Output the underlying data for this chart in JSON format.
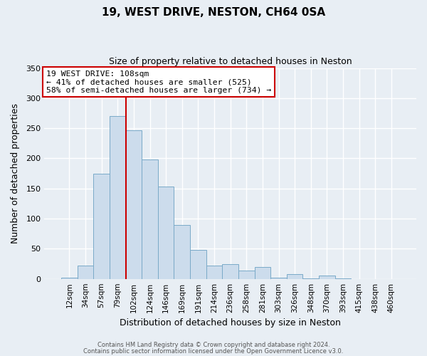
{
  "title": "19, WEST DRIVE, NESTON, CH64 0SA",
  "subtitle": "Size of property relative to detached houses in Neston",
  "xlabel": "Distribution of detached houses by size in Neston",
  "ylabel": "Number of detached properties",
  "bin_labels": [
    "12sqm",
    "34sqm",
    "57sqm",
    "79sqm",
    "102sqm",
    "124sqm",
    "146sqm",
    "169sqm",
    "191sqm",
    "214sqm",
    "236sqm",
    "258sqm",
    "281sqm",
    "303sqm",
    "326sqm",
    "348sqm",
    "370sqm",
    "393sqm",
    "415sqm",
    "438sqm",
    "460sqm"
  ],
  "bar_heights": [
    2,
    22,
    175,
    270,
    247,
    198,
    153,
    89,
    48,
    22,
    25,
    14,
    20,
    2,
    8,
    1,
    5,
    1,
    0,
    0,
    0
  ],
  "bar_color": "#ccdcec",
  "bar_edge_color": "#7aaac8",
  "bar_width": 1.0,
  "ylim": [
    0,
    350
  ],
  "yticks": [
    0,
    50,
    100,
    150,
    200,
    250,
    300,
    350
  ],
  "vline_x": 3.5,
  "vline_color": "#cc0000",
  "annotation_text": "19 WEST DRIVE: 108sqm\n← 41% of detached houses are smaller (525)\n58% of semi-detached houses are larger (734) →",
  "annotation_box_color": "#ffffff",
  "annotation_box_edge_color": "#cc0000",
  "footnote1": "Contains HM Land Registry data © Crown copyright and database right 2024.",
  "footnote2": "Contains public sector information licensed under the Open Government Licence v3.0.",
  "background_color": "#e8eef4",
  "grid_color": "#ffffff",
  "fig_width": 6.0,
  "fig_height": 5.0,
  "title_fontsize": 11,
  "subtitle_fontsize": 9
}
